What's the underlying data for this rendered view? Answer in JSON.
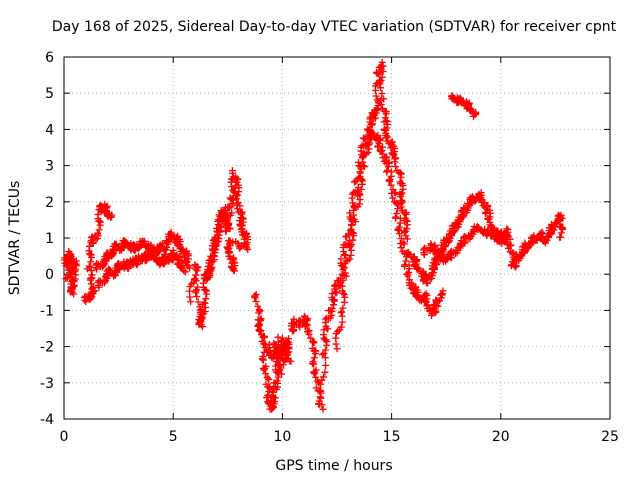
{
  "chart_data": {
    "type": "scatter",
    "title": "Day 168 of 2025, Sidereal Day-to-day VTEC variation (SDTVAR) for receiver cpnt",
    "xlabel": "GPS time / hours",
    "ylabel": "SDTVAR / TECUs",
    "xlim": [
      0,
      25
    ],
    "ylim": [
      -4,
      6
    ],
    "xticks": [
      0,
      5,
      10,
      15,
      20,
      25
    ],
    "yticks": [
      -4,
      -3,
      -2,
      -1,
      0,
      1,
      2,
      3,
      4,
      5,
      6
    ],
    "grid": true,
    "marker": "+",
    "color": "#ff0000",
    "series": [
      {
        "name": "t0",
        "points": [
          [
            0.1,
            0.3
          ],
          [
            0.2,
            0.6
          ],
          [
            0.3,
            0.2
          ],
          [
            0.35,
            -0.3
          ],
          [
            0.4,
            -0.5
          ],
          [
            0.45,
            0.1
          ],
          [
            0.5,
            0.4
          ],
          [
            0.15,
            -0.1
          ],
          [
            0.25,
            0.5
          ],
          [
            0.4,
            0.3
          ]
        ]
      },
      {
        "name": "t1",
        "points": [
          [
            1.0,
            -0.7
          ],
          [
            1.2,
            -0.6
          ],
          [
            1.4,
            -0.4
          ],
          [
            1.1,
            0.2
          ],
          [
            1.3,
            0.9
          ],
          [
            1.5,
            1.1
          ],
          [
            1.7,
            1.8
          ],
          [
            1.8,
            1.9
          ],
          [
            2.0,
            1.7
          ],
          [
            2.1,
            1.6
          ]
        ]
      },
      {
        "name": "t2",
        "points": [
          [
            1.5,
            0.2
          ],
          [
            1.8,
            0.3
          ],
          [
            2.0,
            0.5
          ],
          [
            2.2,
            0.6
          ],
          [
            2.4,
            0.8
          ],
          [
            2.6,
            0.7
          ],
          [
            2.8,
            0.9
          ],
          [
            3.0,
            0.8
          ],
          [
            3.2,
            0.7
          ],
          [
            3.4,
            0.8
          ],
          [
            3.6,
            0.9
          ],
          [
            3.8,
            0.8
          ],
          [
            4.0,
            0.7
          ],
          [
            4.2,
            0.6
          ],
          [
            4.4,
            0.8
          ],
          [
            4.6,
            0.7
          ],
          [
            4.8,
            1.0
          ],
          [
            5.0,
            1.1
          ],
          [
            5.2,
            0.9
          ],
          [
            5.4,
            0.7
          ],
          [
            5.6,
            0.5
          ],
          [
            5.7,
            0.2
          ]
        ]
      },
      {
        "name": "t3",
        "points": [
          [
            1.6,
            -0.3
          ],
          [
            1.9,
            -0.1
          ],
          [
            2.1,
            0.1
          ],
          [
            2.3,
            0.0
          ],
          [
            2.5,
            0.2
          ],
          [
            2.7,
            0.3
          ],
          [
            2.9,
            0.2
          ],
          [
            3.1,
            0.4
          ],
          [
            3.3,
            0.3
          ],
          [
            3.5,
            0.5
          ],
          [
            3.7,
            0.4
          ],
          [
            3.9,
            0.6
          ],
          [
            4.1,
            0.5
          ],
          [
            4.3,
            0.4
          ],
          [
            4.5,
            0.3
          ],
          [
            4.7,
            0.5
          ],
          [
            4.9,
            0.4
          ],
          [
            5.1,
            0.6
          ],
          [
            5.3,
            0.3
          ],
          [
            5.5,
            0.1
          ]
        ]
      },
      {
        "name": "t4",
        "points": [
          [
            5.8,
            -0.7
          ],
          [
            6.0,
            0.3
          ],
          [
            6.1,
            -0.3
          ],
          [
            6.2,
            -1.2
          ],
          [
            6.3,
            -1.4
          ],
          [
            6.4,
            -0.8
          ],
          [
            6.5,
            -0.1
          ],
          [
            6.6,
            0.0
          ],
          [
            6.7,
            0.2
          ],
          [
            6.8,
            0.5
          ],
          [
            6.9,
            0.8
          ],
          [
            7.0,
            1.0
          ],
          [
            7.1,
            1.3
          ],
          [
            7.2,
            1.6
          ],
          [
            7.3,
            1.8
          ],
          [
            7.4,
            1.5
          ],
          [
            7.5,
            1.2
          ],
          [
            7.6,
            1.8
          ],
          [
            7.7,
            2.2
          ],
          [
            7.8,
            2.8
          ],
          [
            7.9,
            2.4
          ],
          [
            8.0,
            1.9
          ],
          [
            8.1,
            1.5
          ],
          [
            8.2,
            1.2
          ],
          [
            8.3,
            1.0
          ],
          [
            8.4,
            0.7
          ],
          [
            7.5,
            0.9
          ],
          [
            7.6,
            0.6
          ],
          [
            7.7,
            0.3
          ],
          [
            7.8,
            0.1
          ]
        ]
      },
      {
        "name": "t5",
        "points": [
          [
            8.8,
            -0.5
          ],
          [
            8.9,
            -1.2
          ],
          [
            9.0,
            -1.5
          ],
          [
            9.1,
            -1.8
          ],
          [
            9.2,
            -2.5
          ],
          [
            9.3,
            -3.0
          ],
          [
            9.4,
            -3.5
          ],
          [
            9.5,
            -3.7
          ],
          [
            9.6,
            -3.4
          ],
          [
            9.7,
            -3.0
          ],
          [
            9.8,
            -2.5
          ],
          [
            9.9,
            -2.2
          ],
          [
            10.0,
            -2.0
          ],
          [
            10.1,
            -1.8
          ],
          [
            10.2,
            -2.1
          ],
          [
            10.3,
            -2.4
          ],
          [
            9.3,
            -2.0
          ],
          [
            9.5,
            -2.3
          ],
          [
            9.7,
            -1.8
          ],
          [
            9.9,
            -2.8
          ],
          [
            10.4,
            -1.6
          ],
          [
            10.6,
            -1.3
          ]
        ]
      },
      {
        "name": "t6",
        "points": [
          [
            10.8,
            -1.4
          ],
          [
            11.0,
            -1.2
          ],
          [
            11.2,
            -1.5
          ],
          [
            11.4,
            -2.0
          ],
          [
            11.5,
            -2.6
          ],
          [
            11.6,
            -3.1
          ],
          [
            11.8,
            -3.7
          ],
          [
            11.9,
            -2.2
          ],
          [
            12.0,
            -1.5
          ],
          [
            12.2,
            -1.0
          ],
          [
            12.4,
            -0.5
          ],
          [
            12.6,
            -0.2
          ],
          [
            12.8,
            0.5
          ],
          [
            13.0,
            1.0
          ],
          [
            13.2,
            1.8
          ],
          [
            13.4,
            2.5
          ],
          [
            13.6,
            3.2
          ],
          [
            13.8,
            3.7
          ],
          [
            14.0,
            4.1
          ],
          [
            14.2,
            4.4
          ],
          [
            14.3,
            4.6
          ],
          [
            14.4,
            5.5
          ],
          [
            14.5,
            5.8
          ],
          [
            14.6,
            4.8
          ],
          [
            14.7,
            4.2
          ],
          [
            14.8,
            3.8
          ],
          [
            15.0,
            3.5
          ],
          [
            15.2,
            3.2
          ],
          [
            15.4,
            2.5
          ],
          [
            15.5,
            2.0
          ],
          [
            15.6,
            1.5
          ],
          [
            15.7,
            1.0
          ]
        ]
      },
      {
        "name": "t7",
        "points": [
          [
            12.5,
            -2.0
          ],
          [
            12.7,
            -1.0
          ],
          [
            12.9,
            0.0
          ],
          [
            13.1,
            0.8
          ],
          [
            13.3,
            1.5
          ],
          [
            13.5,
            2.2
          ],
          [
            13.7,
            3.0
          ],
          [
            13.9,
            3.6
          ],
          [
            14.1,
            3.9
          ],
          [
            14.3,
            3.8
          ],
          [
            14.5,
            3.5
          ],
          [
            14.7,
            3.2
          ],
          [
            14.9,
            2.8
          ],
          [
            15.1,
            2.2
          ],
          [
            15.3,
            1.5
          ],
          [
            15.5,
            0.8
          ],
          [
            15.7,
            0.2
          ],
          [
            15.9,
            -0.3
          ],
          [
            16.1,
            -0.5
          ],
          [
            16.3,
            -0.7
          ],
          [
            16.5,
            -0.6
          ],
          [
            16.7,
            -0.9
          ],
          [
            16.9,
            -1.1
          ],
          [
            17.1,
            -0.8
          ],
          [
            17.3,
            -0.5
          ]
        ]
      },
      {
        "name": "t8",
        "points": [
          [
            15.8,
            0.6
          ],
          [
            16.0,
            0.4
          ],
          [
            16.2,
            0.2
          ],
          [
            16.4,
            0.0
          ],
          [
            16.6,
            -0.2
          ],
          [
            16.8,
            0.0
          ],
          [
            17.0,
            0.3
          ],
          [
            17.2,
            0.5
          ],
          [
            17.4,
            0.8
          ],
          [
            17.6,
            1.0
          ],
          [
            17.8,
            1.2
          ],
          [
            18.0,
            1.4
          ],
          [
            18.2,
            1.6
          ],
          [
            18.4,
            1.8
          ],
          [
            18.6,
            2.0
          ],
          [
            18.8,
            2.1
          ],
          [
            19.0,
            2.2
          ],
          [
            19.2,
            2.0
          ],
          [
            19.4,
            1.7
          ],
          [
            19.6,
            1.3
          ],
          [
            19.8,
            1.0
          ],
          [
            20.0,
            0.9
          ],
          [
            20.2,
            1.2
          ],
          [
            20.4,
            1.0
          ]
        ]
      },
      {
        "name": "t9",
        "points": [
          [
            16.5,
            0.6
          ],
          [
            16.8,
            0.8
          ],
          [
            17.1,
            0.6
          ],
          [
            17.4,
            0.4
          ],
          [
            17.7,
            0.5
          ],
          [
            18.0,
            0.7
          ],
          [
            18.3,
            0.9
          ],
          [
            18.6,
            1.1
          ],
          [
            18.9,
            1.3
          ],
          [
            19.2,
            1.2
          ],
          [
            19.5,
            1.1
          ],
          [
            19.8,
            1.2
          ],
          [
            20.1,
            1.0
          ],
          [
            20.4,
            0.8
          ],
          [
            20.6,
            0.2
          ],
          [
            20.8,
            0.5
          ],
          [
            21.0,
            0.6
          ],
          [
            21.2,
            0.8
          ],
          [
            21.4,
            0.9
          ],
          [
            21.6,
            1.0
          ],
          [
            21.8,
            1.1
          ],
          [
            22.0,
            0.9
          ],
          [
            22.2,
            1.1
          ],
          [
            22.4,
            1.3
          ],
          [
            22.6,
            1.5
          ],
          [
            22.8,
            1.6
          ],
          [
            22.7,
            1.0
          ]
        ]
      },
      {
        "name": "t10",
        "points": [
          [
            17.8,
            4.9
          ],
          [
            18.0,
            4.8
          ],
          [
            18.2,
            4.8
          ],
          [
            18.4,
            4.7
          ],
          [
            18.6,
            4.6
          ],
          [
            18.8,
            4.4
          ]
        ]
      }
    ]
  }
}
